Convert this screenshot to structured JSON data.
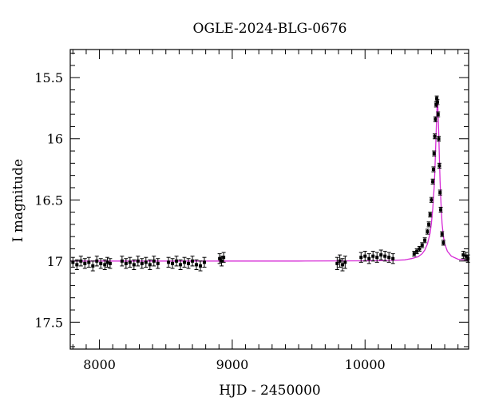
{
  "chart_data": {
    "type": "scatter",
    "title": "OGLE-2024-BLG-0676",
    "xlabel": "HJD - 2450000",
    "ylabel": "I magnitude",
    "xlim": [
      7780,
      10780
    ],
    "ylim": [
      17.72,
      15.27
    ],
    "y_inverted": true,
    "grid": false,
    "x_ticks": [
      8000,
      9000,
      10000
    ],
    "x_tick_labels": [
      "8000",
      "9000",
      "10000"
    ],
    "y_ticks": [
      15.5,
      16,
      16.5,
      17,
      17.5
    ],
    "y_tick_labels": [
      "15.5",
      "16",
      "16.5",
      "17",
      "17.5"
    ],
    "colors": {
      "points": "#000000",
      "model": "#d62ad6",
      "axes": "#000000"
    },
    "series": [
      {
        "kind": "observations",
        "x": [
          7800,
          7830,
          7860,
          7890,
          7920,
          7950,
          7980,
          8010,
          8040,
          8060,
          8080,
          8170,
          8200,
          8230,
          8260,
          8290,
          8320,
          8350,
          8380,
          8410,
          8440,
          8520,
          8550,
          8580,
          8610,
          8640,
          8670,
          8700,
          8730,
          8760,
          8790,
          8905,
          8920,
          8935,
          9790,
          9810,
          9830,
          9850,
          9970,
          10000,
          10030,
          10060,
          10090,
          10120,
          10150,
          10180,
          10210,
          10370,
          10390,
          10410,
          10430,
          10450,
          10470,
          10480,
          10490,
          10500,
          10510,
          10515,
          10520,
          10525,
          10530,
          10535,
          10540,
          10545,
          10550,
          10555,
          10560,
          10565,
          10570,
          10580,
          10590,
          10740,
          10760,
          10775
        ],
        "y": [
          17.01,
          17.03,
          17.0,
          17.02,
          17.01,
          17.04,
          17.0,
          17.02,
          17.03,
          17.01,
          17.02,
          17.0,
          17.02,
          17.01,
          17.03,
          17.0,
          17.02,
          17.01,
          17.03,
          17.0,
          17.02,
          17.01,
          17.02,
          17.0,
          17.03,
          17.01,
          17.02,
          17.0,
          17.03,
          17.04,
          17.01,
          16.98,
          17.0,
          16.97,
          17.02,
          17.0,
          17.03,
          17.01,
          16.97,
          16.96,
          16.98,
          16.96,
          16.97,
          16.95,
          16.96,
          16.97,
          16.98,
          16.94,
          16.92,
          16.9,
          16.87,
          16.83,
          16.76,
          16.7,
          16.62,
          16.5,
          16.35,
          16.25,
          16.12,
          15.98,
          15.84,
          15.72,
          15.67,
          15.7,
          15.8,
          16.0,
          16.22,
          16.44,
          16.58,
          16.78,
          16.85,
          16.95,
          16.96,
          16.98
        ],
        "error": [
          0.04,
          0.04,
          0.04,
          0.04,
          0.04,
          0.04,
          0.04,
          0.04,
          0.04,
          0.04,
          0.04,
          0.04,
          0.04,
          0.04,
          0.04,
          0.04,
          0.04,
          0.04,
          0.04,
          0.04,
          0.04,
          0.04,
          0.04,
          0.04,
          0.04,
          0.04,
          0.04,
          0.04,
          0.04,
          0.04,
          0.04,
          0.04,
          0.04,
          0.04,
          0.05,
          0.05,
          0.05,
          0.05,
          0.04,
          0.04,
          0.04,
          0.04,
          0.04,
          0.04,
          0.04,
          0.04,
          0.04,
          0.02,
          0.02,
          0.02,
          0.02,
          0.02,
          0.02,
          0.02,
          0.02,
          0.02,
          0.02,
          0.02,
          0.02,
          0.02,
          0.02,
          0.02,
          0.02,
          0.02,
          0.02,
          0.02,
          0.02,
          0.02,
          0.02,
          0.02,
          0.02,
          0.03,
          0.03,
          0.03
        ]
      },
      {
        "kind": "model",
        "baseline": 17.0,
        "peak_mag": 15.66,
        "peak_time": 10545,
        "x": [
          7780,
          8500,
          9500,
          10000,
          10200,
          10300,
          10350,
          10400,
          10430,
          10450,
          10470,
          10490,
          10500,
          10510,
          10520,
          10525,
          10530,
          10535,
          10540,
          10545,
          10550,
          10555,
          10560,
          10565,
          10570,
          10580,
          10590,
          10600,
          10620,
          10650,
          10700,
          10780
        ],
        "y": [
          17.0,
          17.0,
          17.0,
          16.998,
          16.995,
          16.99,
          16.98,
          16.965,
          16.94,
          16.91,
          16.86,
          16.77,
          16.69,
          16.57,
          16.4,
          16.28,
          16.13,
          15.97,
          15.8,
          15.66,
          15.78,
          15.96,
          16.16,
          16.34,
          16.49,
          16.69,
          16.8,
          16.86,
          16.92,
          16.96,
          16.985,
          16.995
        ]
      }
    ]
  }
}
